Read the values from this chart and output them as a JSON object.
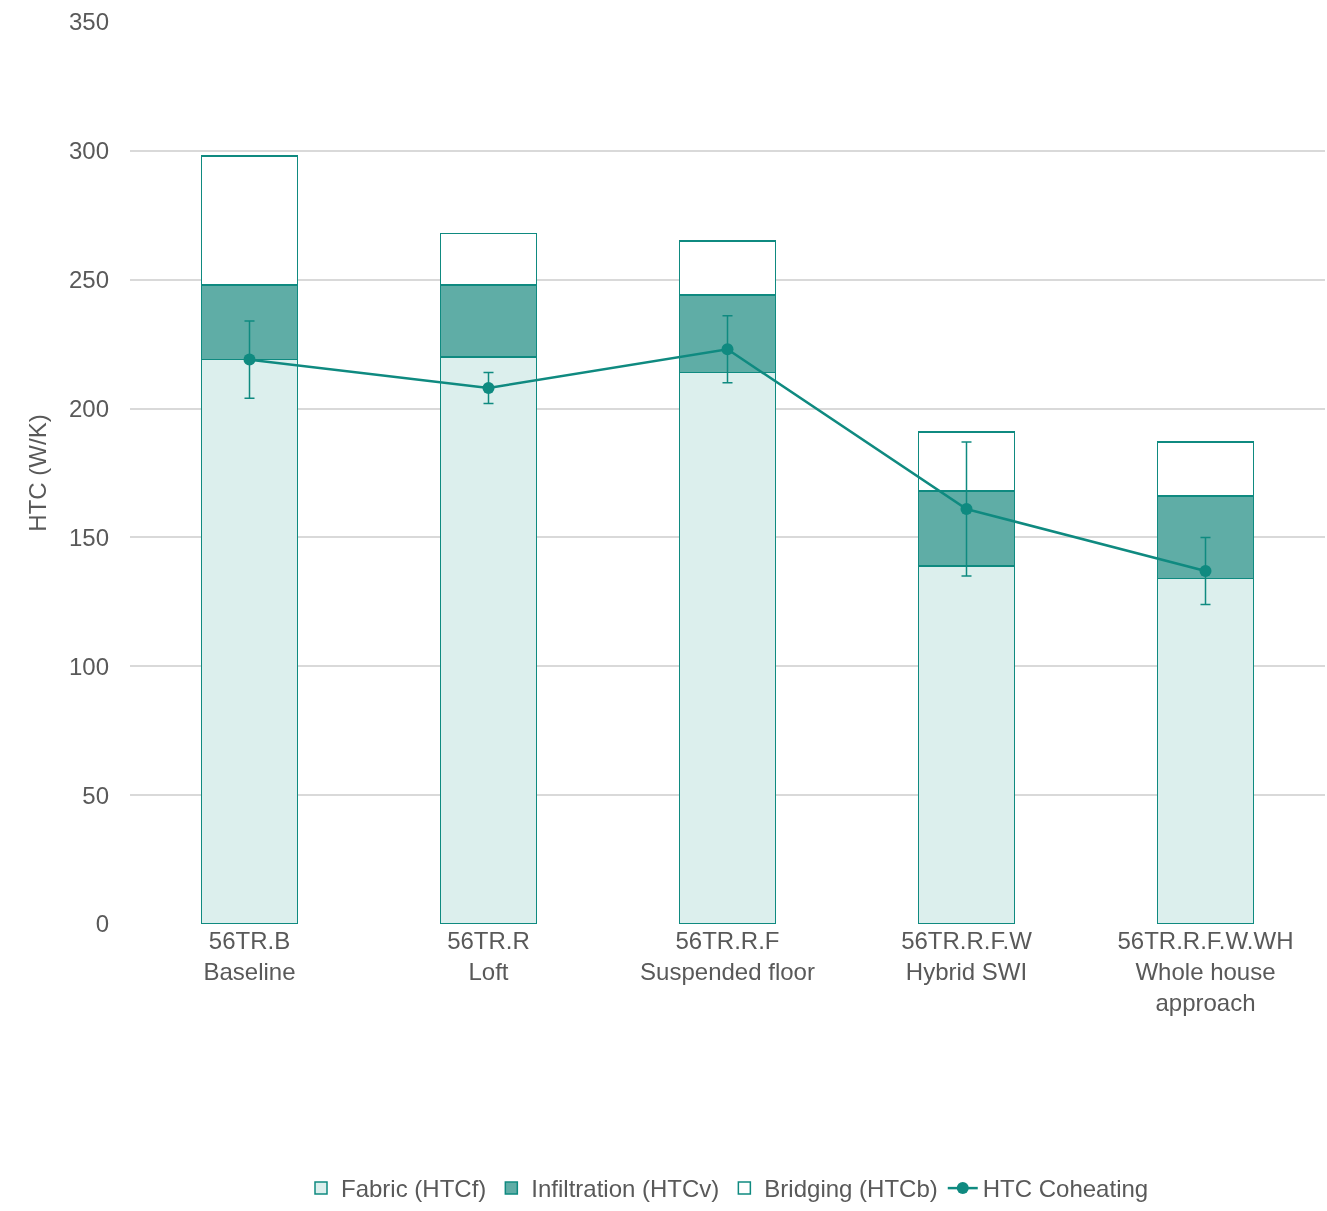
{
  "chart_data": {
    "type": "bar",
    "stacked": true,
    "ylabel": "HTC (W/K)",
    "categories": [
      "56TR.B\nBaseline",
      "56TR.R\nLoft",
      "56TR.R.F\nSuspended floor",
      "56TR.R.F.W\nHybrid SWI",
      "56TR.R.F.W.WH\nWhole house\napproach"
    ],
    "series": [
      {
        "name": "Fabric (HTCf)",
        "color": "#dcefed",
        "values": [
          219,
          220,
          214,
          139,
          134
        ]
      },
      {
        "name": "Infiltration (HTCv)",
        "color": "#5fada6",
        "values": [
          29,
          28,
          30,
          29,
          32
        ]
      },
      {
        "name": "Bridging (HTCb)",
        "color": "#0f8a80",
        "values": [
          50,
          20,
          21,
          23,
          21
        ]
      },
      {
        "name": "HTC Coheating",
        "type": "line",
        "color": "#0f8a80",
        "marker": "circle",
        "values": [
          219,
          208,
          223,
          161,
          137
        ],
        "errors": [
          [
            204,
            234
          ],
          [
            202,
            214
          ],
          [
            210,
            236
          ],
          [
            135,
            187
          ],
          [
            124,
            150
          ]
        ]
      }
    ],
    "ylim": [
      0,
      350
    ],
    "yticks": [
      0,
      50,
      100,
      150,
      200,
      250,
      300,
      350
    ],
    "grid": "y",
    "legend": "bottom"
  }
}
